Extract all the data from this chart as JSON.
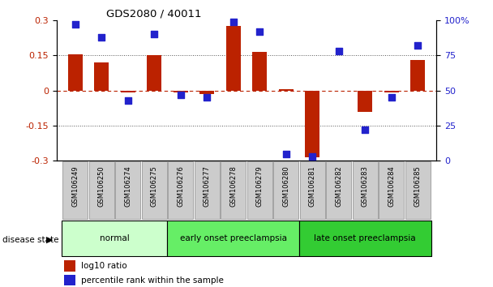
{
  "title": "GDS2080 / 40011",
  "categories": [
    "GSM106249",
    "GSM106250",
    "GSM106274",
    "GSM106275",
    "GSM106276",
    "GSM106277",
    "GSM106278",
    "GSM106279",
    "GSM106280",
    "GSM106281",
    "GSM106282",
    "GSM106283",
    "GSM106284",
    "GSM106285"
  ],
  "log10_ratio": [
    0.155,
    0.12,
    -0.01,
    0.15,
    -0.01,
    -0.015,
    0.275,
    0.165,
    0.005,
    -0.285,
    0.0,
    -0.09,
    -0.01,
    0.13
  ],
  "percentile_rank": [
    97,
    88,
    43,
    90,
    47,
    45,
    99,
    92,
    5,
    3,
    78,
    22,
    45,
    82
  ],
  "bar_color": "#bb2200",
  "dot_color": "#2222cc",
  "ylim_left": [
    -0.3,
    0.3
  ],
  "ylim_right": [
    0,
    100
  ],
  "yticks_left": [
    -0.3,
    -0.15,
    0.0,
    0.15,
    0.3
  ],
  "yticks_right": [
    0,
    25,
    50,
    75,
    100
  ],
  "ytick_labels_left": [
    "-0.3",
    "-0.15",
    "0",
    "0.15",
    "0.3"
  ],
  "ytick_labels_right": [
    "0",
    "25",
    "50",
    "75",
    "100%"
  ],
  "hlines_dotted": [
    -0.15,
    0.15
  ],
  "hline_dash": 0.0,
  "groups": [
    {
      "label": "normal",
      "start": 0,
      "end": 3,
      "color": "#ccffcc"
    },
    {
      "label": "early onset preeclampsia",
      "start": 4,
      "end": 8,
      "color": "#66ee66"
    },
    {
      "label": "late onset preeclampsia",
      "start": 9,
      "end": 13,
      "color": "#33cc33"
    }
  ],
  "legend_items": [
    {
      "label": "log10 ratio",
      "color": "#bb2200"
    },
    {
      "label": "percentile rank within the sample",
      "color": "#2222cc"
    }
  ],
  "disease_state_label": "disease state",
  "bg_color": "#ffffff",
  "bar_width": 0.55,
  "dot_size": 40,
  "xtick_box_color": "#cccccc",
  "xtick_box_edge": "#888888"
}
